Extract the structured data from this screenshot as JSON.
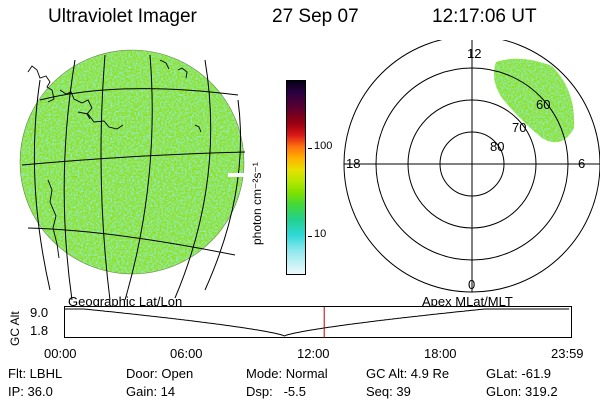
{
  "header": {
    "instrument": "Ultraviolet Imager",
    "date": "27 Sep 07",
    "time": "12:17:06 UT"
  },
  "colorbar": {
    "unit_label": "photon cm⁻²s⁻¹",
    "ticks": [
      "100",
      "10"
    ]
  },
  "polar_plot": {
    "mlt_labels": {
      "top": "12",
      "left": "18",
      "right": "6",
      "bottom": "0"
    },
    "lat_labels": [
      "60",
      "70",
      "80"
    ]
  },
  "timeline": {
    "left_label": "Geographic Lat/Lon",
    "right_label": "Apex MLat/MLT",
    "axis_title": "GC Alt",
    "y_ticks": [
      "9.0",
      "1.8"
    ],
    "x_ticks": [
      "00:00",
      "06:00",
      "12:00",
      "18:00",
      "23:59"
    ],
    "current_hour": 12.285,
    "min_alt_hour": 10.4
  },
  "status": {
    "filter": "Flt: LBHL",
    "ip": "IP: 36.0",
    "door": "Door: Open",
    "gain": "Gain: 14",
    "mode": "Mode: Normal",
    "dsp": "Dsp:   -5.5",
    "gc_alt": "GC Alt: 4.9 Re",
    "seq": "Seq: 39",
    "glat": "GLat: -61.9",
    "glon": "GLon: 319.2"
  },
  "colors": {
    "aurora_green": "#7fe000",
    "aurora_cyan": "#30d8d8",
    "current_time_marker": "#c00000"
  }
}
